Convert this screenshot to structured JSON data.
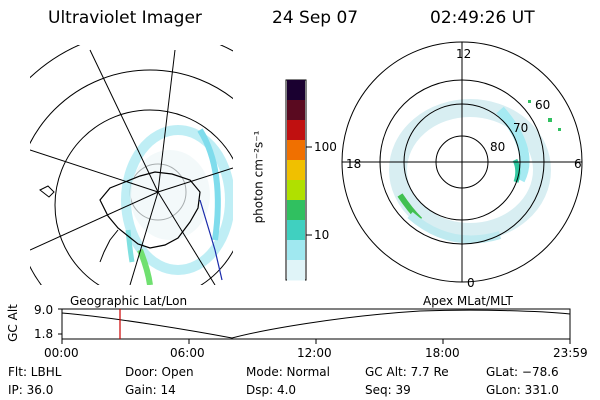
{
  "header": {
    "instrument": "Ultraviolet Imager",
    "date": "24 Sep 07",
    "time": "02:49:26 UT"
  },
  "colorbar": {
    "unit_label": "photon cm⁻²s⁻¹",
    "ticks": [
      "100",
      "10"
    ],
    "colors": [
      "#1a0030",
      "#5a0a20",
      "#c01010",
      "#f07000",
      "#f0c000",
      "#b0e000",
      "#30c060",
      "#40d0c0",
      "#a0e8f0",
      "#e0f4f8"
    ]
  },
  "left_map": {
    "label": "Geographic Lat/Lon"
  },
  "right_map": {
    "label": "Apex MLat/MLT",
    "mlt_labels": {
      "top": "12",
      "left": "18",
      "right": "6",
      "bottom": "0"
    },
    "lat_labels": [
      "60",
      "70",
      "80"
    ]
  },
  "timeline": {
    "ylabel": "GC Alt",
    "y_ticks": [
      "9.0",
      "1.8"
    ],
    "x_ticks": [
      "00:00",
      "06:00",
      "12:00",
      "18:00",
      "23:59"
    ],
    "cursor_color": "#cc0000"
  },
  "status": {
    "row1": {
      "flt": "Flt: LBHL",
      "door": "Door: Open",
      "mode": "Mode: Normal",
      "gc_alt": "GC Alt: 7.7 Re",
      "glat": "GLat: −78.6"
    },
    "row2": {
      "ip": "IP: 36.0",
      "gain": "Gain: 14",
      "dsp": "Dsp:    4.0",
      "seq": "Seq: 39",
      "glon": "GLon: 331.0"
    }
  }
}
